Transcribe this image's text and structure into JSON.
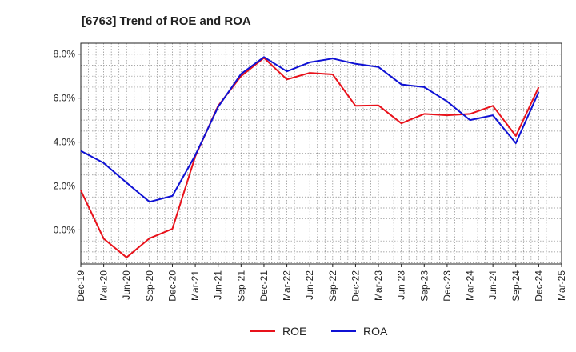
{
  "chart_data": {
    "type": "line",
    "title": "[6763]  Trend of ROE and ROA",
    "xlabel": "",
    "ylabel": "",
    "categories": [
      "Dec-19",
      "Mar-20",
      "Jun-20",
      "Sep-20",
      "Dec-20",
      "Mar-21",
      "Jun-21",
      "Sep-21",
      "Dec-21",
      "Mar-22",
      "Jun-22",
      "Sep-22",
      "Dec-22",
      "Mar-23",
      "Jun-23",
      "Sep-23",
      "Dec-23",
      "Mar-24",
      "Jun-24",
      "Sep-24",
      "Dec-24",
      "Mar-25"
    ],
    "y_ticks": [
      0.0,
      2.0,
      4.0,
      6.0,
      8.0
    ],
    "y_tick_labels": [
      "0.0%",
      "2.0%",
      "4.0%",
      "6.0%",
      "8.0%"
    ],
    "ylim": [
      -1.55,
      8.5
    ],
    "grid": true,
    "legend_position": "bottom-center",
    "series": [
      {
        "name": "ROE",
        "color": "#e8121b",
        "values": [
          1.8,
          -0.4,
          -1.25,
          -0.38,
          0.05,
          3.35,
          5.65,
          7.0,
          7.83,
          6.85,
          7.15,
          7.08,
          5.65,
          5.67,
          4.85,
          5.28,
          5.22,
          5.28,
          5.65,
          4.28,
          6.5,
          null
        ]
      },
      {
        "name": "ROA",
        "color": "#0f11d4",
        "values": [
          3.6,
          3.05,
          2.15,
          1.28,
          1.55,
          3.4,
          5.6,
          7.1,
          7.87,
          7.22,
          7.63,
          7.8,
          7.56,
          7.42,
          6.62,
          6.5,
          5.85,
          5.0,
          5.22,
          3.95,
          6.28,
          null
        ]
      }
    ]
  }
}
